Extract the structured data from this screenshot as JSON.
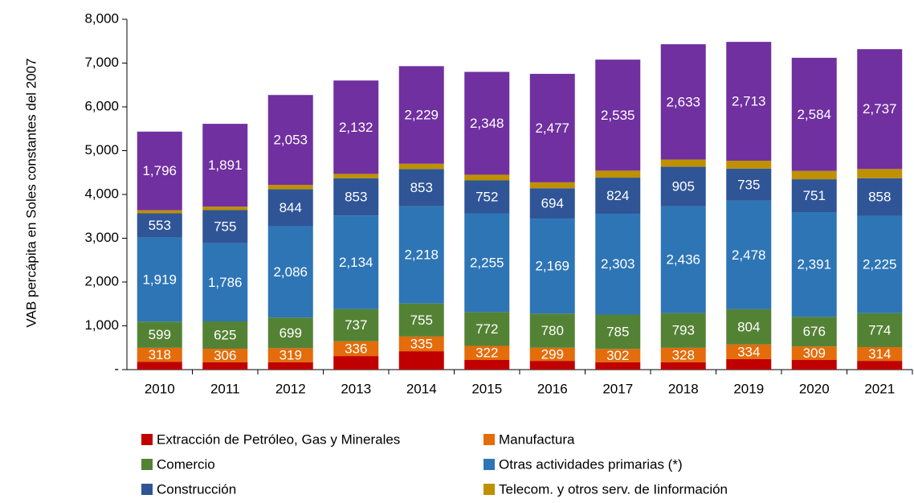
{
  "chart_data": {
    "type": "stacked_bar",
    "y_label": "VAB percápita en Soles constantes del 2007",
    "categories": [
      "2010",
      "2011",
      "2012",
      "2013",
      "2014",
      "2015",
      "2016",
      "2017",
      "2018",
      "2019",
      "2020",
      "2021"
    ],
    "series": [
      {
        "name": "Extracción de Petróleo, Gas y Minerales",
        "color": "#c00000",
        "values": [
          180,
          170,
          170,
          310,
          420,
          220,
          200,
          170,
          170,
          240,
          220,
          200
        ]
      },
      {
        "name": "Manufactura",
        "color": "#e46c0a",
        "values": [
          318,
          306,
          319,
          336,
          335,
          322,
          299,
          302,
          328,
          334,
          309,
          314
        ]
      },
      {
        "name": "Comercio",
        "color": "#548235",
        "values": [
          599,
          625,
          699,
          737,
          755,
          772,
          780,
          785,
          793,
          804,
          676,
          774
        ]
      },
      {
        "name": "Otras actividades primarias (*)",
        "color": "#2e75b6",
        "values": [
          1919,
          1786,
          2086,
          2134,
          2218,
          2255,
          2169,
          2303,
          2436,
          2478,
          2391,
          2225
        ],
        "value_labels": [
          "1,919",
          "1,786",
          "2,086",
          "2,134",
          "2,218",
          "2,255",
          "2,169",
          "2,303",
          "2,436",
          "2,478",
          "2,391",
          "2,225"
        ]
      },
      {
        "name": "Construcción",
        "color": "#2f5597",
        "values": [
          553,
          755,
          844,
          853,
          853,
          752,
          694,
          824,
          905,
          735,
          751,
          858
        ]
      },
      {
        "name": "Telecom. y otros serv. de Iinformación",
        "color": "#bf9000",
        "values": [
          70,
          80,
          100,
          100,
          120,
          130,
          135,
          160,
          165,
          180,
          190,
          210
        ]
      },
      {
        "name": null,
        "color": "#7030a0",
        "values": [
          1796,
          1891,
          2053,
          2132,
          2229,
          2348,
          2477,
          2535,
          2633,
          2713,
          2584,
          2737
        ],
        "value_labels": [
          "1,796",
          "1,891",
          "2,053",
          "2,132",
          "2,229",
          "2,348",
          "2,477",
          "2,535",
          "2,633",
          "2,713",
          "2,584",
          "2,737"
        ]
      }
    ],
    "labeled_series": [
      1,
      2,
      3,
      4,
      6
    ],
    "ylim": [
      0,
      8000
    ],
    "yticks": [
      {
        "value": 0,
        "label": "-"
      },
      {
        "value": 1000,
        "label": "1,000"
      },
      {
        "value": 2000,
        "label": "2,000"
      },
      {
        "value": 3000,
        "label": "3,000"
      },
      {
        "value": 4000,
        "label": "4,000"
      },
      {
        "value": 5000,
        "label": "5,000"
      },
      {
        "value": 6000,
        "label": "6,000"
      },
      {
        "value": 7000,
        "label": "7,000"
      },
      {
        "value": 8000,
        "label": "8,000"
      }
    ],
    "legend": "bottom"
  }
}
